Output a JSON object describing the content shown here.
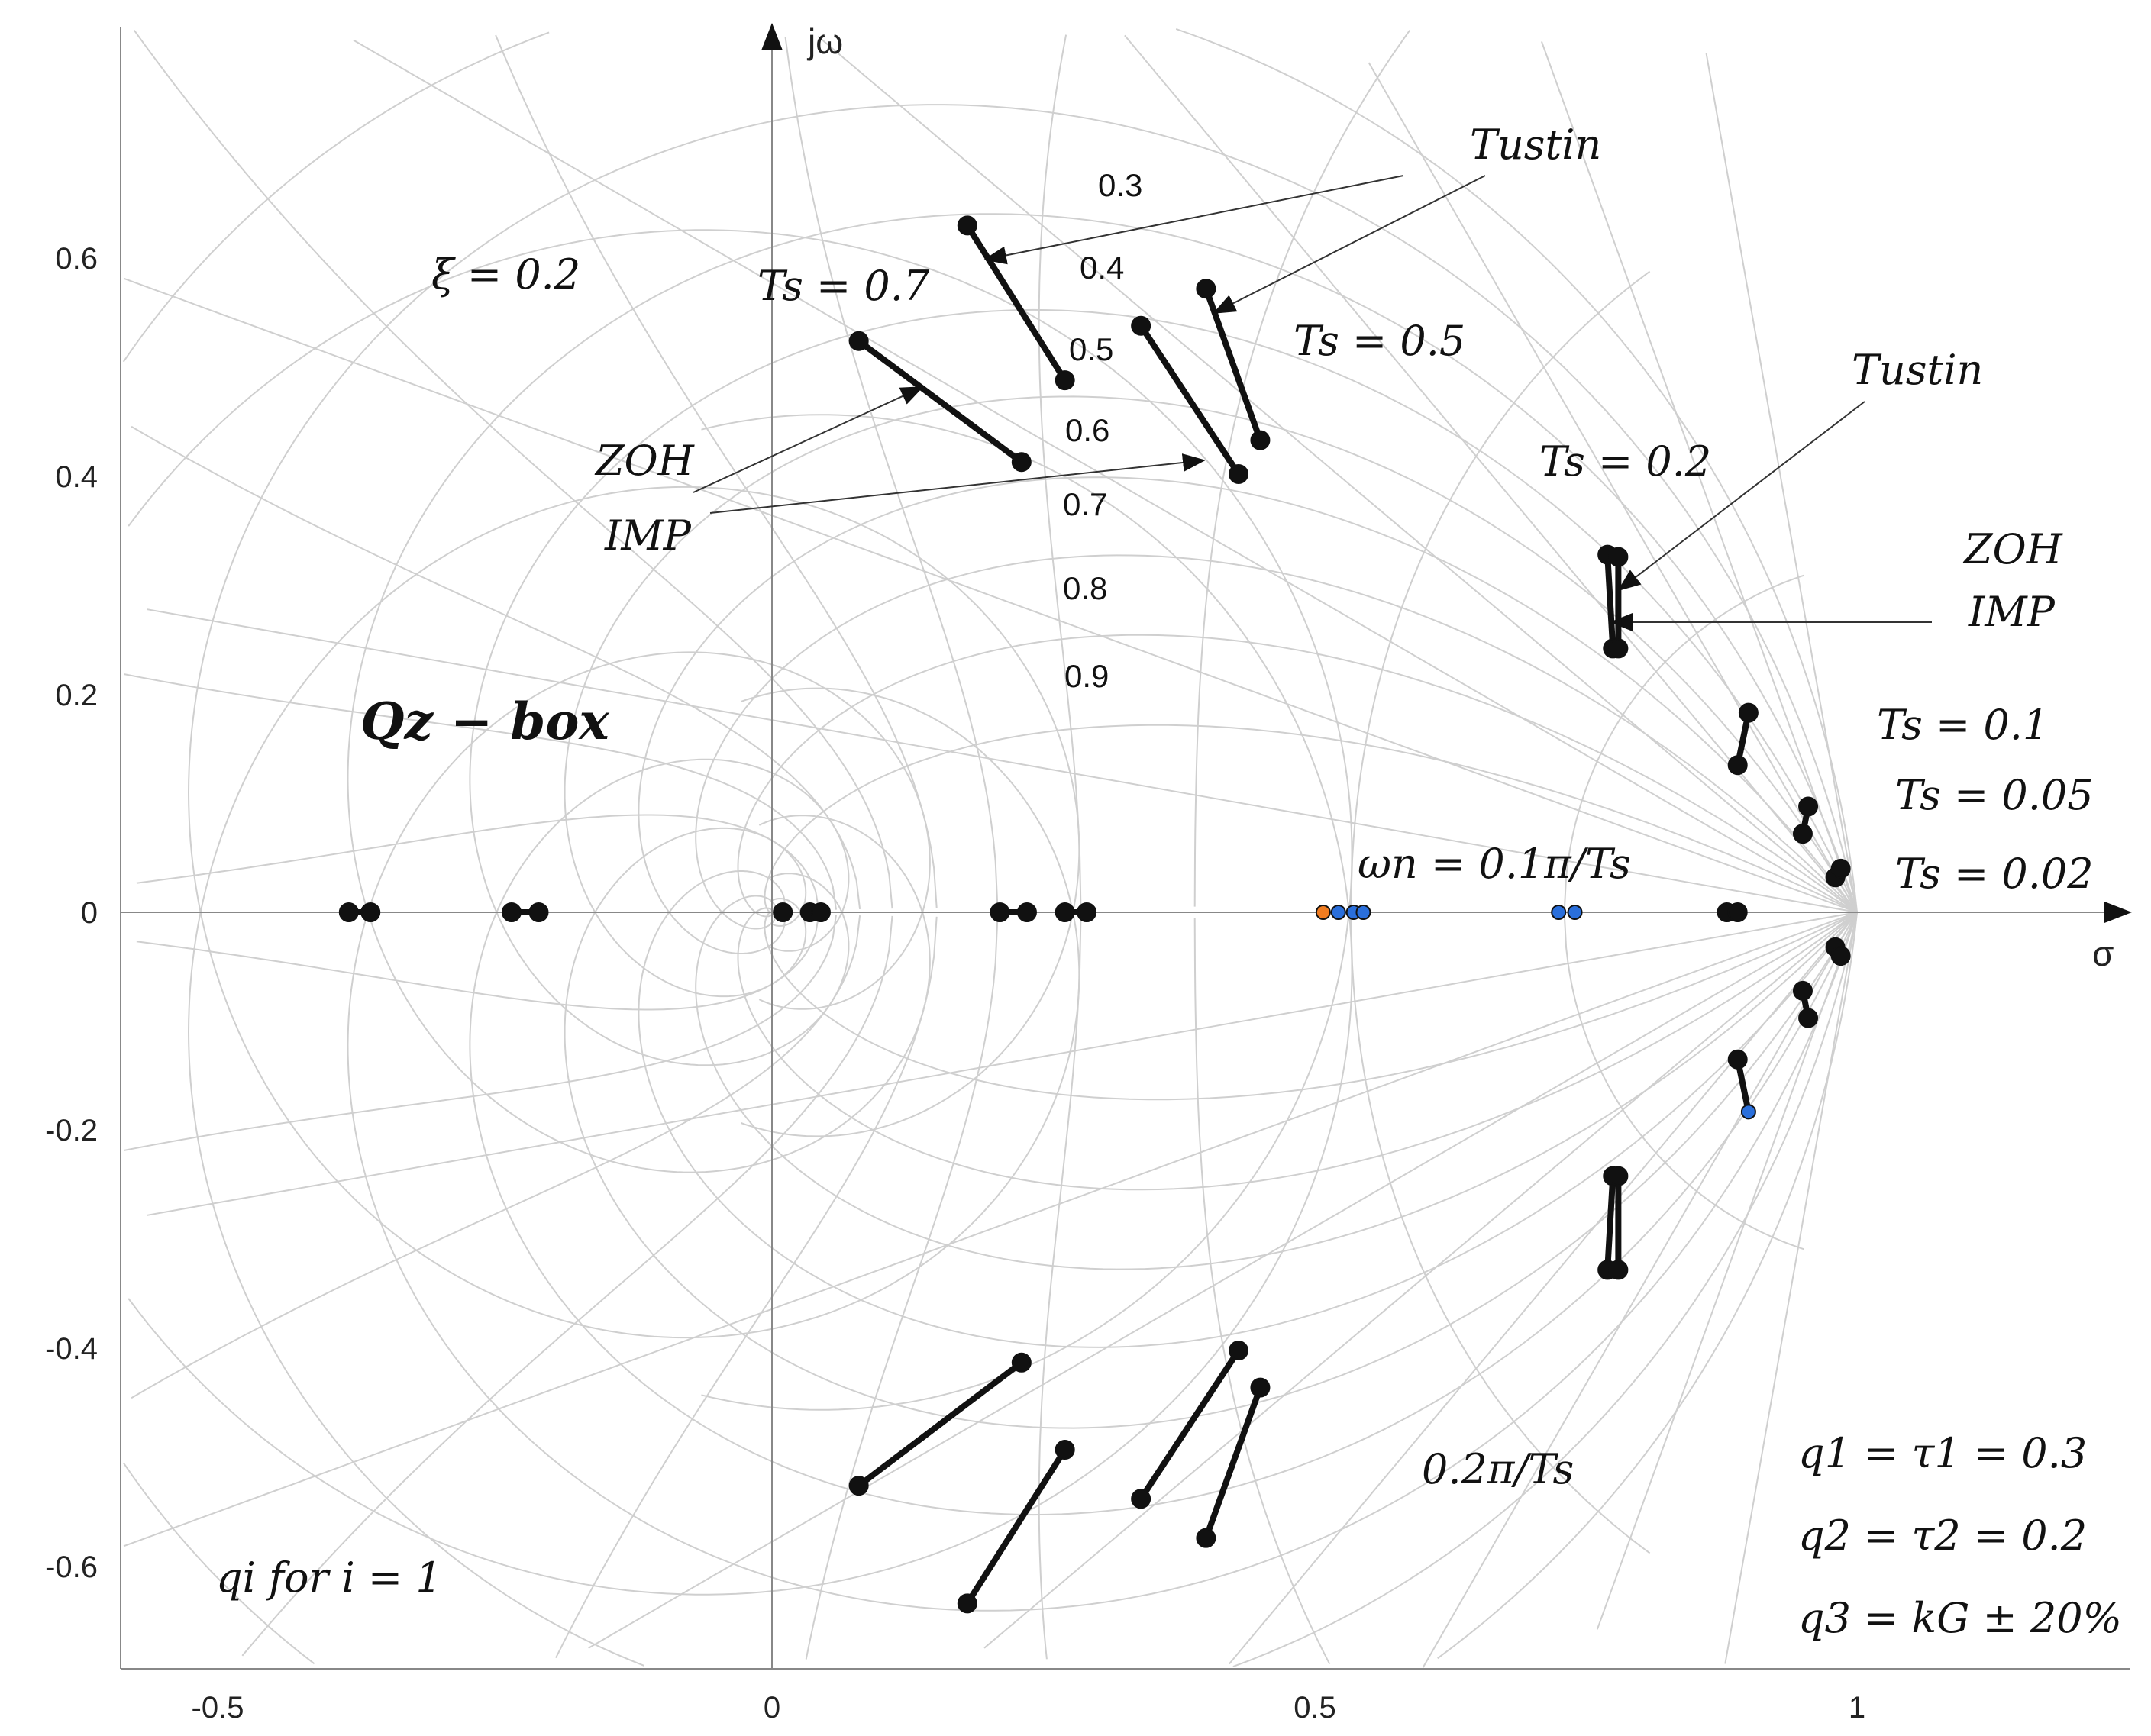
{
  "chart_data": {
    "type": "scatter",
    "title": "Qz − box",
    "xlabel": "σ",
    "ylabel": "jω",
    "xlim": [
      -0.6,
      1.25
    ],
    "ylim": [
      -0.7,
      0.8
    ],
    "xticks": [
      "-0.5",
      "0",
      "0.5",
      "1"
    ],
    "yticks": [
      "0.6",
      "0.4",
      "0.2",
      "0",
      "-0.2",
      "-0.4",
      "-0.6"
    ],
    "grid": "z-plane damping ratio / natural frequency grid (light gray)",
    "zeta_labels": [
      "0.3",
      "0.4",
      "0.5",
      "0.6",
      "0.7",
      "0.8",
      "0.9"
    ],
    "xi_label": "ξ = 0.2",
    "annotations": {
      "ts07": "Ts = 0.7",
      "ts05": "Ts = 0.5",
      "ts02": "Ts = 0.2",
      "ts01": "Ts = 0.1",
      "ts005": "Ts = 0.05",
      "ts002": "Ts = 0.02",
      "tustin_top": "Tustin",
      "tustin_right": "Tustin",
      "zoh_left": "ZOH",
      "imp_left": "IMP",
      "zoh_right": "ZOH",
      "imp_right": "IMP",
      "wn01": "ωn = 0.1π/Ts",
      "wn02": "0.2π/Ts",
      "qi": "qi for i = 1",
      "q1": "q1 = τ1 = 0.3",
      "q2": "q2 = τ2 = 0.2",
      "q3": "q3 = kG ± 20%"
    },
    "segments": [
      {
        "from": [
          0.08,
          0.524
        ],
        "to": [
          0.23,
          0.413
        ]
      },
      {
        "from": [
          0.18,
          0.63
        ],
        "to": [
          0.27,
          0.488
        ]
      },
      {
        "from": [
          0.34,
          0.538
        ],
        "to": [
          0.43,
          0.402
        ]
      },
      {
        "from": [
          0.4,
          0.572
        ],
        "to": [
          0.45,
          0.433
        ]
      },
      {
        "from": [
          0.77,
          0.328
        ],
        "to": [
          0.775,
          0.242
        ]
      },
      {
        "from": [
          0.78,
          0.326
        ],
        "to": [
          0.78,
          0.242
        ]
      },
      {
        "from": [
          0.89,
          0.135
        ],
        "to": [
          0.9,
          0.183
        ]
      },
      {
        "from": [
          0.95,
          0.072
        ],
        "to": [
          0.955,
          0.097
        ]
      },
      {
        "from": [
          0.98,
          0.032
        ],
        "to": [
          0.985,
          0.04
        ]
      },
      {
        "from": [
          0.08,
          -0.526
        ],
        "to": [
          0.23,
          -0.413
        ]
      },
      {
        "from": [
          0.18,
          -0.634
        ],
        "to": [
          0.27,
          -0.493
        ]
      },
      {
        "from": [
          0.34,
          -0.538
        ],
        "to": [
          0.43,
          -0.402
        ]
      },
      {
        "from": [
          0.4,
          -0.574
        ],
        "to": [
          0.45,
          -0.436
        ]
      },
      {
        "from": [
          0.77,
          -0.328
        ],
        "to": [
          0.775,
          -0.242
        ]
      },
      {
        "from": [
          0.78,
          -0.328
        ],
        "to": [
          0.78,
          -0.242
        ]
      },
      {
        "from": [
          0.89,
          -0.135
        ],
        "to": [
          0.9,
          -0.183
        ]
      },
      {
        "from": [
          0.95,
          -0.072
        ],
        "to": [
          0.955,
          -0.097
        ]
      },
      {
        "from": [
          0.98,
          -0.032
        ],
        "to": [
          0.985,
          -0.04
        ]
      },
      {
        "from": [
          -0.39,
          0
        ],
        "to": [
          -0.37,
          0
        ]
      },
      {
        "from": [
          -0.24,
          0
        ],
        "to": [
          -0.215,
          0
        ]
      },
      {
        "from": [
          0.035,
          0
        ],
        "to": [
          0.045,
          0
        ]
      },
      {
        "from": [
          0.21,
          0
        ],
        "to": [
          0.235,
          0
        ]
      },
      {
        "from": [
          0.27,
          0
        ],
        "to": [
          0.29,
          0
        ]
      },
      {
        "from": [
          0.88,
          0
        ],
        "to": [
          0.89,
          0
        ]
      }
    ],
    "points": [
      {
        "x": -0.39,
        "y": 0,
        "c": "black"
      },
      {
        "x": -0.37,
        "y": 0,
        "c": "black"
      },
      {
        "x": -0.24,
        "y": 0,
        "c": "black"
      },
      {
        "x": -0.215,
        "y": 0,
        "c": "black"
      },
      {
        "x": 0.01,
        "y": 0,
        "c": "black"
      },
      {
        "x": 0.035,
        "y": 0,
        "c": "black"
      },
      {
        "x": 0.045,
        "y": 0,
        "c": "black"
      },
      {
        "x": 0.21,
        "y": 0,
        "c": "black"
      },
      {
        "x": 0.235,
        "y": 0,
        "c": "black"
      },
      {
        "x": 0.27,
        "y": 0,
        "c": "black"
      },
      {
        "x": 0.29,
        "y": 0,
        "c": "black"
      },
      {
        "x": 0.508,
        "y": 0,
        "c": "orange"
      },
      {
        "x": 0.522,
        "y": 0,
        "c": "blue"
      },
      {
        "x": 0.536,
        "y": 0,
        "c": "blue"
      },
      {
        "x": 0.545,
        "y": 0,
        "c": "blue"
      },
      {
        "x": 0.725,
        "y": 0,
        "c": "blue"
      },
      {
        "x": 0.74,
        "y": 0,
        "c": "blue"
      },
      {
        "x": 0.88,
        "y": 0,
        "c": "black"
      },
      {
        "x": 0.89,
        "y": 0,
        "c": "black"
      },
      {
        "x": 0.08,
        "y": 0.524,
        "c": "black"
      },
      {
        "x": 0.23,
        "y": 0.413,
        "c": "black"
      },
      {
        "x": 0.18,
        "y": 0.63,
        "c": "black"
      },
      {
        "x": 0.27,
        "y": 0.488,
        "c": "black"
      },
      {
        "x": 0.34,
        "y": 0.538,
        "c": "black"
      },
      {
        "x": 0.43,
        "y": 0.402,
        "c": "black"
      },
      {
        "x": 0.4,
        "y": 0.572,
        "c": "black"
      },
      {
        "x": 0.45,
        "y": 0.433,
        "c": "black"
      },
      {
        "x": 0.77,
        "y": 0.328,
        "c": "black"
      },
      {
        "x": 0.78,
        "y": 0.326,
        "c": "black"
      },
      {
        "x": 0.775,
        "y": 0.242,
        "c": "black"
      },
      {
        "x": 0.78,
        "y": 0.242,
        "c": "black"
      },
      {
        "x": 0.89,
        "y": 0.135,
        "c": "black"
      },
      {
        "x": 0.9,
        "y": 0.183,
        "c": "black"
      },
      {
        "x": 0.95,
        "y": 0.072,
        "c": "black"
      },
      {
        "x": 0.955,
        "y": 0.097,
        "c": "black"
      },
      {
        "x": 0.98,
        "y": 0.032,
        "c": "black"
      },
      {
        "x": 0.985,
        "y": 0.04,
        "c": "black"
      },
      {
        "x": 0.08,
        "y": -0.526,
        "c": "black"
      },
      {
        "x": 0.23,
        "y": -0.413,
        "c": "black"
      },
      {
        "x": 0.18,
        "y": -0.634,
        "c": "black"
      },
      {
        "x": 0.27,
        "y": -0.493,
        "c": "black"
      },
      {
        "x": 0.34,
        "y": -0.538,
        "c": "black"
      },
      {
        "x": 0.43,
        "y": -0.402,
        "c": "black"
      },
      {
        "x": 0.4,
        "y": -0.574,
        "c": "black"
      },
      {
        "x": 0.45,
        "y": -0.436,
        "c": "black"
      },
      {
        "x": 0.77,
        "y": -0.328,
        "c": "black"
      },
      {
        "x": 0.78,
        "y": -0.328,
        "c": "black"
      },
      {
        "x": 0.775,
        "y": -0.242,
        "c": "black"
      },
      {
        "x": 0.78,
        "y": -0.242,
        "c": "black"
      },
      {
        "x": 0.89,
        "y": -0.135,
        "c": "black"
      },
      {
        "x": 0.9,
        "y": -0.183,
        "c": "blue"
      },
      {
        "x": 0.95,
        "y": -0.072,
        "c": "black"
      },
      {
        "x": 0.955,
        "y": -0.097,
        "c": "black"
      },
      {
        "x": 0.98,
        "y": -0.032,
        "c": "black"
      },
      {
        "x": 0.985,
        "y": -0.04,
        "c": "black"
      }
    ],
    "colors": {
      "black": "#111111",
      "blue": "#2a6fdb",
      "orange": "#f07c20",
      "grid": "#cfcfcf",
      "axis": "#888888"
    }
  }
}
